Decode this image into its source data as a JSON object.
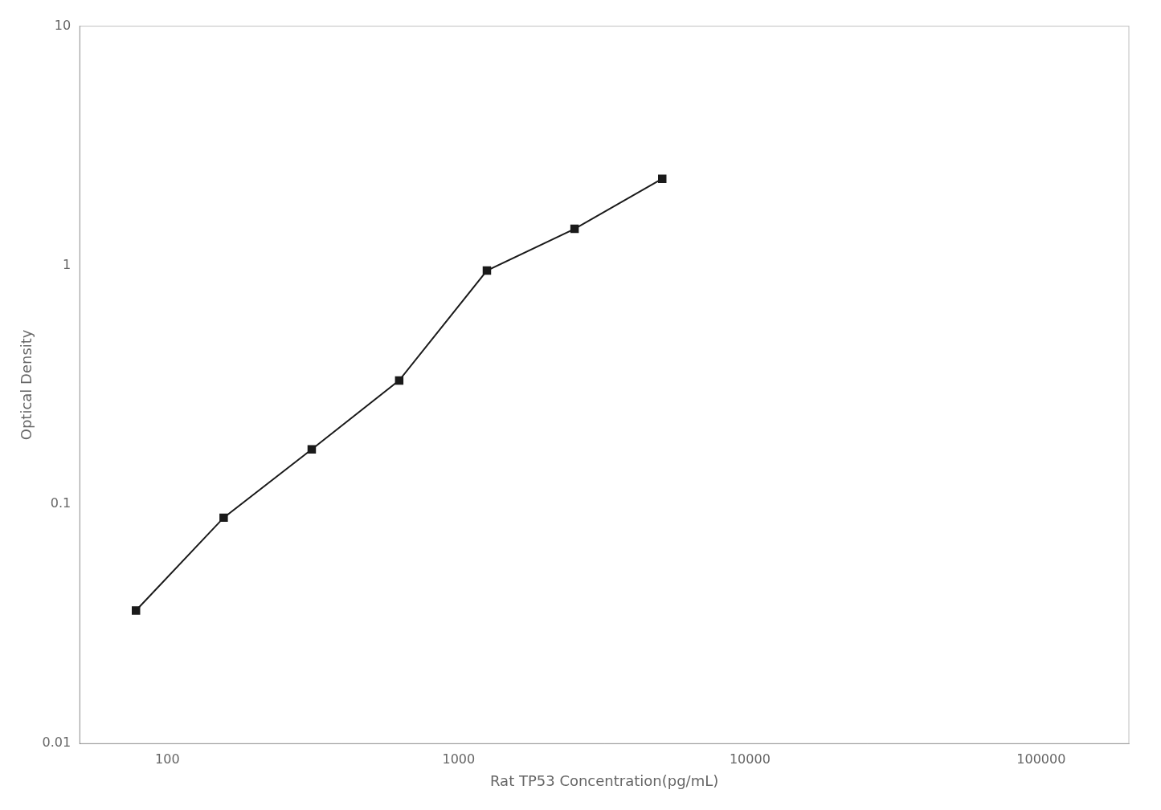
{
  "chart_data": {
    "type": "line",
    "x": [
      78,
      156,
      313,
      625,
      1250,
      2500,
      5000
    ],
    "values": [
      0.036,
      0.088,
      0.17,
      0.33,
      0.95,
      1.42,
      2.3
    ],
    "xlabel": "Rat TP53 Concentration(pg/mL)",
    "ylabel": "Optical Density",
    "xlim": [
      50,
      200000
    ],
    "ylim": [
      0.01,
      10
    ],
    "xticks": [
      100,
      1000,
      10000,
      100000
    ],
    "yticks": [
      0.01,
      0.1,
      1,
      10
    ],
    "log": true,
    "grid": false,
    "color": "#1a1a1a",
    "marker": "square"
  }
}
